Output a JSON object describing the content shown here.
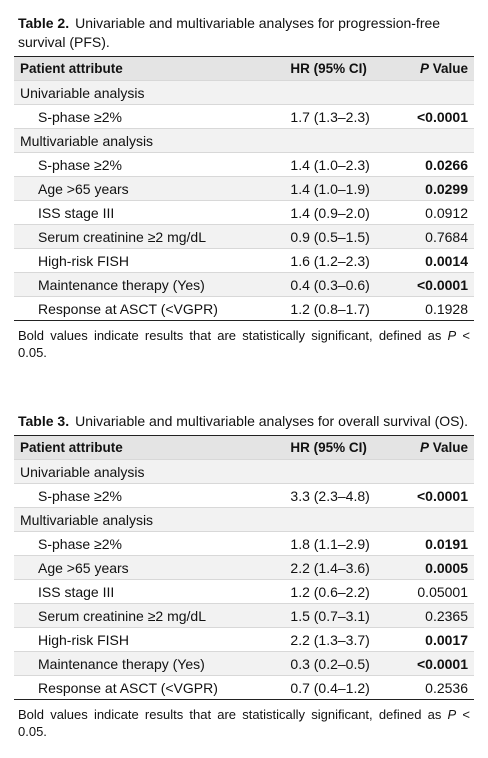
{
  "tables": [
    {
      "label": "Table 2.",
      "caption": "Univariable and multivariable analyses for progression-free survival (PFS).",
      "headers": {
        "attr": "Patient attribute",
        "hr": "HR (95% CI)",
        "p_italic": "P",
        "p_rest": " Value"
      },
      "rows": [
        {
          "section": "Univariable analysis"
        },
        {
          "attr": "S-phase ≥2%",
          "hr": "1.7 (1.3–2.3)",
          "p": "<0.0001",
          "sig": true
        },
        {
          "section": "Multivariable analysis"
        },
        {
          "attr": "S-phase ≥2%",
          "hr": "1.4 (1.0–2.3)",
          "p": "0.0266",
          "sig": true
        },
        {
          "attr": "Age >65 years",
          "hr": "1.4 (1.0–1.9)",
          "p": "0.0299",
          "sig": true
        },
        {
          "attr": "ISS stage III",
          "hr": "1.4 (0.9–2.0)",
          "p": "0.0912",
          "sig": false
        },
        {
          "attr": "Serum creatinine ≥2 mg/dL",
          "hr": "0.9 (0.5–1.5)",
          "p": "0.7684",
          "sig": false
        },
        {
          "attr": "High-risk FISH",
          "hr": "1.6 (1.2–2.3)",
          "p": "0.0014",
          "sig": true
        },
        {
          "attr": "Maintenance therapy (Yes)",
          "hr": "0.4 (0.3–0.6)",
          "p": "<0.0001",
          "sig": true
        },
        {
          "attr": "Response at ASCT (<VGPR)",
          "hr": "1.2 (0.8–1.7)",
          "p": "0.1928",
          "sig": false
        }
      ],
      "footnote": {
        "text": "Bold values indicate results that are statistically significant, defined as ",
        "p_italic": "P",
        "tail": " < 0.05."
      }
    },
    {
      "label": "Table 3.",
      "caption": "Univariable and multivariable analyses for overall survival (OS).",
      "headers": {
        "attr": "Patient attribute",
        "hr": "HR (95% CI)",
        "p_italic": "P",
        "p_rest": " Value"
      },
      "rows": [
        {
          "section": "Univariable analysis"
        },
        {
          "attr": "S-phase ≥2%",
          "hr": "3.3 (2.3–4.8)",
          "p": "<0.0001",
          "sig": true
        },
        {
          "section": "Multivariable analysis"
        },
        {
          "attr": "S-phase ≥2%",
          "hr": "1.8 (1.1–2.9)",
          "p": "0.0191",
          "sig": true
        },
        {
          "attr": "Age >65 years",
          "hr": "2.2 (1.4–3.6)",
          "p": "0.0005",
          "sig": true
        },
        {
          "attr": "ISS stage III",
          "hr": "1.2 (0.6–2.2)",
          "p": "0.05001",
          "sig": false
        },
        {
          "attr": "Serum creatinine ≥2 mg/dL",
          "hr": "1.5 (0.7–3.1)",
          "p": "0.2365",
          "sig": false
        },
        {
          "attr": "High-risk FISH",
          "hr": "2.2 (1.3–3.7)",
          "p": "0.0017",
          "sig": true
        },
        {
          "attr": "Maintenance therapy (Yes)",
          "hr": "0.3 (0.2–0.5)",
          "p": "<0.0001",
          "sig": true
        },
        {
          "attr": "Response at ASCT (<VGPR)",
          "hr": "0.7 (0.4–1.2)",
          "p": "0.2536",
          "sig": false
        }
      ],
      "footnote": {
        "text": "Bold values indicate results that are statistically significant, defined as ",
        "p_italic": "P",
        "tail": " < 0.05."
      }
    }
  ]
}
